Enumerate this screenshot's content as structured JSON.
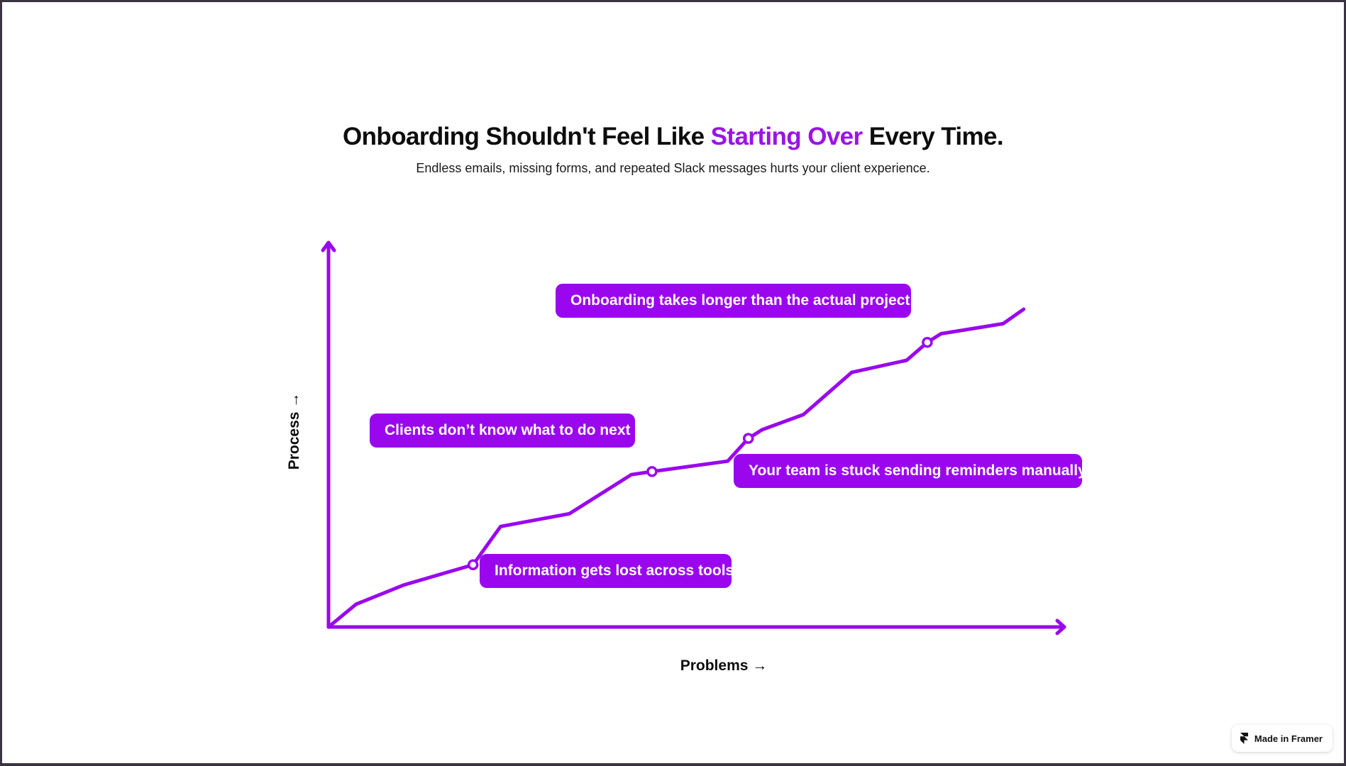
{
  "colors": {
    "accent": "#9a14e6",
    "callout_bg": "#9a07ee",
    "line": "#9a07ee"
  },
  "header": {
    "title_before": "Onboarding Shouldn't Feel Like ",
    "title_accent": "Starting Over",
    "title_after": " Every Time.",
    "subtitle": "Endless emails, missing forms, and repeated Slack messages hurts your client experience."
  },
  "chart_data": {
    "type": "line",
    "xlabel": "Problems →",
    "ylabel": "Process →",
    "ylim": [
      0,
      1
    ],
    "series": [
      {
        "values": [
          [
            0.0,
            0.0
          ],
          [
            0.04,
            0.066
          ],
          [
            0.11,
            0.122
          ],
          [
            0.21,
            0.18
          ],
          [
            0.25,
            0.291
          ],
          [
            0.35,
            0.328
          ],
          [
            0.44,
            0.441
          ],
          [
            0.47,
            0.45
          ],
          [
            0.58,
            0.48
          ],
          [
            0.61,
            0.546
          ],
          [
            0.63,
            0.571
          ],
          [
            0.69,
            0.615
          ],
          [
            0.76,
            0.737
          ],
          [
            0.84,
            0.772
          ],
          [
            0.87,
            0.824
          ],
          [
            0.89,
            0.849
          ],
          [
            0.98,
            0.878
          ],
          [
            1.01,
            0.92
          ]
        ]
      }
    ],
    "markers": [
      0.21,
      0.47,
      0.61,
      0.87
    ],
    "annotations": [
      {
        "text": "Information gets lost across tools"
      },
      {
        "text": "Clients don’t know what to do next"
      },
      {
        "text": "Your team is stuck sending reminders manually"
      },
      {
        "text": "Onboarding takes longer than the actual project"
      }
    ]
  },
  "footer": {
    "badge_label": "Made in Framer",
    "badge_icon": "framer-logo-icon"
  }
}
